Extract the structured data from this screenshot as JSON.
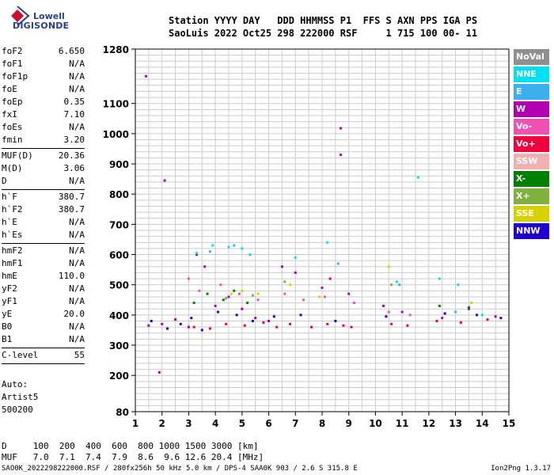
{
  "logo": {
    "line1": "Lowell",
    "line2": "DIGISONDE"
  },
  "header": {
    "labels": "Station YYYY DAY   DDD HHMMSS P1  FFS S AXN PPS IGA PS",
    "values": "SaoLuis 2022 Oct25 298 222000 RSF     1 715 100 00- 11"
  },
  "params": {
    "group1": [
      {
        "name": "foF2",
        "value": "6.650"
      },
      {
        "name": "foF1",
        "value": "N/A"
      },
      {
        "name": "foF1p",
        "value": "N/A"
      },
      {
        "name": "foE",
        "value": "N/A"
      },
      {
        "name": "foEp",
        "value": "0.35"
      },
      {
        "name": "fxI",
        "value": "7.10"
      },
      {
        "name": "foEs",
        "value": "N/A"
      },
      {
        "name": "fmin",
        "value": "3.20"
      }
    ],
    "group2": [
      {
        "name": "MUF(D)",
        "value": "20.36"
      },
      {
        "name": "M(D)",
        "value": "3.06"
      },
      {
        "name": "D",
        "value": "N/A"
      }
    ],
    "group3": [
      {
        "name": "h`F",
        "value": "380.7"
      },
      {
        "name": "h`F2",
        "value": "380.7"
      },
      {
        "name": "h`E",
        "value": "N/A"
      },
      {
        "name": "h`Es",
        "value": "N/A"
      }
    ],
    "group4": [
      {
        "name": "hmF2",
        "value": "N/A"
      },
      {
        "name": "hmF1",
        "value": "N/A"
      },
      {
        "name": "hmE",
        "value": "110.0"
      },
      {
        "name": "yF2",
        "value": "N/A"
      },
      {
        "name": "yF1",
        "value": "N/A"
      },
      {
        "name": "yE",
        "value": "20.0"
      },
      {
        "name": "B0",
        "value": "N/A"
      },
      {
        "name": "B1",
        "value": "N/A"
      }
    ],
    "group5": [
      {
        "name": "C-level",
        "value": "55"
      }
    ]
  },
  "auto": {
    "line1": "Auto:",
    "line2": "Artist5",
    "line3": "500200"
  },
  "legend": [
    {
      "label": "NoVal",
      "color": "#909090"
    },
    {
      "label": "NNE",
      "color": "#00e0f0"
    },
    {
      "label": "E",
      "color": "#3ab0f0"
    },
    {
      "label": "W",
      "color": "#b000b0"
    },
    {
      "label": "Vo-",
      "color": "#f050b0"
    },
    {
      "label": "Vo+",
      "color": "#f0003c"
    },
    {
      "label": "SSW",
      "color": "#f0b0b0"
    },
    {
      "label": "X-",
      "color": "#008000"
    },
    {
      "label": "X+",
      "color": "#80b040"
    },
    {
      "label": "SSE",
      "color": "#d8d000"
    },
    {
      "label": "NNW",
      "color": "#2000d0"
    }
  ],
  "bottom": {
    "d_row": "D     100  200  400  600  800 1000 1500 3000 [km]",
    "muf_row": "MUF   7.0  7.1  7.4  7.9  8.6  9.6 12.6 20.4 [MHz]"
  },
  "footer": {
    "left": "SAO0K_2022298222000.RSF / 280fx256h 50 kHz 5.0 km / DPS-4 SAA0K 903 / 2.6 S 315.8 E",
    "right": "Ion2Png 1.3.17"
  },
  "chart_data": {
    "type": "scatter",
    "x_ticks": [
      "1",
      "2",
      "3",
      "4",
      "5",
      "6",
      "7",
      "8",
      "9",
      "10",
      "11",
      "12",
      "13",
      "14",
      "15"
    ],
    "y_ticks": [
      "80",
      "200",
      "300",
      "400",
      "500",
      "600",
      "700",
      "800",
      "900",
      "1000",
      "1100",
      "1280"
    ],
    "xlim": [
      1,
      15
    ],
    "ylim": [
      80,
      1280
    ],
    "grid": true,
    "clusters": [
      {
        "name": "W",
        "color": "#b000b0",
        "points": [
          [
            1.5,
            365
          ],
          [
            2.0,
            370
          ],
          [
            2.5,
            385
          ],
          [
            3.0,
            360
          ],
          [
            3.3,
            600
          ],
          [
            3.6,
            560
          ],
          [
            4.0,
            430
          ],
          [
            4.5,
            460
          ],
          [
            5.0,
            420
          ],
          [
            5.5,
            390
          ],
          [
            6.0,
            380
          ],
          [
            6.5,
            560
          ],
          [
            7.0,
            540
          ],
          [
            8.0,
            490
          ],
          [
            8.3,
            520
          ],
          [
            9.0,
            470
          ],
          [
            10.3,
            430
          ],
          [
            11.0,
            410
          ],
          [
            12.5,
            390
          ],
          [
            13.5,
            420
          ],
          [
            14.5,
            395
          ],
          [
            1.4,
            1190
          ],
          [
            8.7,
            1018
          ],
          [
            8.7,
            930
          ],
          [
            2.1,
            845
          ],
          [
            1.9,
            210
          ]
        ]
      },
      {
        "name": "Vo+",
        "color": "#f0003c",
        "points": [
          [
            3.2,
            360
          ],
          [
            3.8,
            355
          ],
          [
            4.4,
            370
          ],
          [
            5.1,
            365
          ],
          [
            5.8,
            375
          ],
          [
            6.3,
            360
          ],
          [
            6.8,
            370
          ],
          [
            7.6,
            360
          ],
          [
            8.2,
            370
          ],
          [
            8.8,
            365
          ],
          [
            9.1,
            360
          ],
          [
            10.6,
            370
          ],
          [
            11.2,
            365
          ],
          [
            12.3,
            380
          ],
          [
            13.2,
            375
          ],
          [
            14.2,
            385
          ]
        ]
      },
      {
        "name": "NNW",
        "color": "#2000d0",
        "points": [
          [
            1.6,
            380
          ],
          [
            2.2,
            355
          ],
          [
            2.7,
            370
          ],
          [
            3.1,
            390
          ],
          [
            3.5,
            350
          ],
          [
            4.1,
            410
          ],
          [
            4.8,
            400
          ],
          [
            5.4,
            380
          ],
          [
            6.2,
            395
          ],
          [
            7.2,
            400
          ],
          [
            8.5,
            380
          ],
          [
            10.4,
            395
          ],
          [
            12.6,
            405
          ],
          [
            13.8,
            400
          ],
          [
            14.7,
            390
          ]
        ]
      },
      {
        "name": "Vo-",
        "color": "#f050b0",
        "points": [
          [
            3.0,
            520
          ],
          [
            3.4,
            480
          ],
          [
            4.2,
            500
          ],
          [
            4.9,
            470
          ],
          [
            5.6,
            450
          ],
          [
            6.6,
            470
          ],
          [
            7.3,
            450
          ],
          [
            8.1,
            460
          ],
          [
            9.2,
            440
          ],
          [
            10.5,
            410
          ],
          [
            11.3,
            400
          ]
        ]
      },
      {
        "name": "NNE",
        "color": "#00e0f0",
        "points": [
          [
            3.3,
            605
          ],
          [
            3.9,
            630
          ],
          [
            4.5,
            625
          ],
          [
            5.0,
            620
          ],
          [
            5.3,
            600
          ],
          [
            7.0,
            590
          ],
          [
            8.2,
            640
          ],
          [
            10.8,
            510
          ],
          [
            11.6,
            855
          ],
          [
            12.4,
            520
          ],
          [
            13.1,
            500
          ],
          [
            14.0,
            400
          ]
        ]
      },
      {
        "name": "X-",
        "color": "#008000",
        "points": [
          [
            3.2,
            440
          ],
          [
            3.7,
            470
          ],
          [
            4.3,
            450
          ],
          [
            4.7,
            480
          ],
          [
            5.2,
            440
          ],
          [
            12.4,
            430
          ],
          [
            13.5,
            425
          ]
        ]
      },
      {
        "name": "SSE",
        "color": "#d8d000",
        "points": [
          [
            4.6,
            470
          ],
          [
            5.0,
            480
          ],
          [
            5.6,
            470
          ],
          [
            6.8,
            500
          ],
          [
            7.9,
            460
          ],
          [
            10.5,
            560
          ],
          [
            13.6,
            440
          ]
        ]
      },
      {
        "name": "X+",
        "color": "#80b040",
        "points": [
          [
            4.4,
            455
          ],
          [
            5.4,
            465
          ],
          [
            6.6,
            510
          ],
          [
            10.6,
            500
          ]
        ]
      },
      {
        "name": "E",
        "color": "#3ab0f0",
        "points": [
          [
            3.8,
            610
          ],
          [
            4.7,
            630
          ],
          [
            8.6,
            570
          ],
          [
            10.9,
            500
          ],
          [
            13.0,
            410
          ]
        ]
      }
    ]
  }
}
